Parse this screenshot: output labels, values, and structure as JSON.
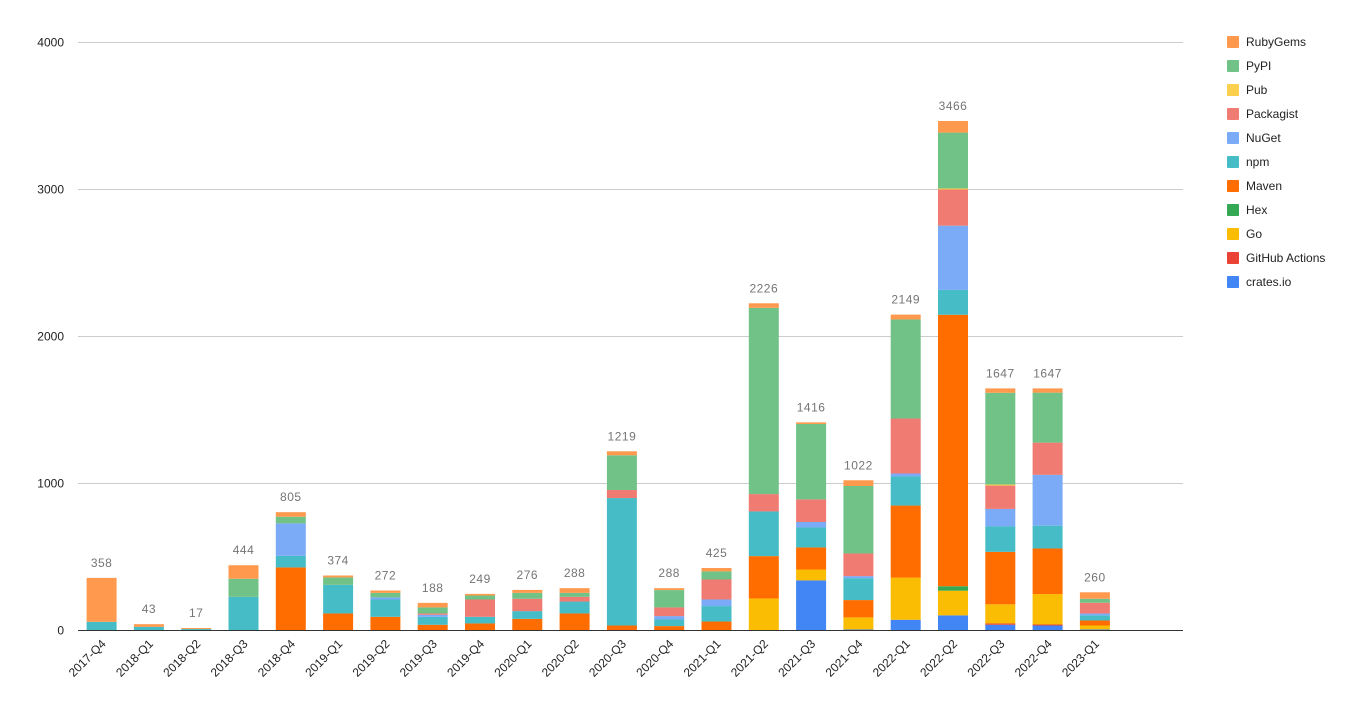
{
  "chart_data": {
    "type": "bar",
    "stacked": true,
    "title": "",
    "xlabel": "",
    "ylabel": "",
    "ylim": [
      0,
      4000
    ],
    "yticks": [
      0,
      1000,
      2000,
      3000,
      4000
    ],
    "grid": true,
    "legend_position": "right",
    "categories": [
      "2017-Q4",
      "2018-Q1",
      "2018-Q2",
      "2018-Q3",
      "2018-Q4",
      "2019-Q1",
      "2019-Q2",
      "2019-Q3",
      "2019-Q4",
      "2020-Q1",
      "2020-Q2",
      "2020-Q3",
      "2020-Q4",
      "2021-Q1",
      "2021-Q2",
      "2021-Q3",
      "2021-Q4",
      "2022-Q1",
      "2022-Q2",
      "2022-Q3",
      "2022-Q4",
      "2023-Q1"
    ],
    "totals": [
      358,
      43,
      17,
      444,
      805,
      374,
      272,
      188,
      249,
      276,
      288,
      1219,
      288,
      425,
      2226,
      1416,
      1022,
      2149,
      3466,
      1647,
      1647,
      260
    ],
    "series": [
      {
        "name": "crates.io",
        "color": "#4285f4",
        "values": [
          0,
          0,
          0,
          0,
          0,
          0,
          0,
          0,
          0,
          0,
          0,
          0,
          0,
          0,
          0,
          341,
          7,
          73,
          103,
          39,
          34,
          7
        ]
      },
      {
        "name": "GitHub Actions",
        "color": "#ea4335",
        "values": [
          0,
          0,
          0,
          0,
          0,
          0,
          0,
          0,
          0,
          0,
          0,
          0,
          0,
          0,
          0,
          0,
          0,
          0,
          0,
          9,
          7,
          0
        ]
      },
      {
        "name": "Go",
        "color": "#fbbc04",
        "values": [
          0,
          0,
          0,
          0,
          0,
          0,
          0,
          0,
          0,
          0,
          0,
          0,
          0,
          0,
          218,
          74,
          82,
          287,
          168,
          130,
          207,
          27
        ]
      },
      {
        "name": "Hex",
        "color": "#34a853",
        "values": [
          0,
          0,
          0,
          0,
          0,
          0,
          0,
          0,
          0,
          0,
          0,
          0,
          0,
          0,
          0,
          0,
          0,
          0,
          30,
          0,
          0,
          0
        ]
      },
      {
        "name": "Maven",
        "color": "#ff6d01",
        "values": [
          0,
          0,
          0,
          0,
          429,
          116,
          93,
          39,
          48,
          79,
          116,
          34,
          30,
          61,
          288,
          150,
          118,
          490,
          1847,
          357,
          310,
          34
        ]
      },
      {
        "name": "npm",
        "color": "#46bdc6",
        "values": [
          59,
          25,
          10,
          229,
          79,
          195,
          118,
          54,
          45,
          53,
          81,
          867,
          45,
          105,
          304,
          136,
          149,
          198,
          169,
          173,
          155,
          35
        ]
      },
      {
        "name": "NuGet",
        "color": "#7baaf7",
        "values": [
          0,
          0,
          0,
          0,
          221,
          0,
          14,
          14,
          0,
          0,
          0,
          0,
          23,
          45,
          0,
          37,
          14,
          20,
          437,
          119,
          346,
          13
        ]
      },
      {
        "name": "Packagist",
        "color": "#f07b72",
        "values": [
          0,
          0,
          0,
          0,
          0,
          0,
          0,
          9,
          118,
          84,
          32,
          55,
          59,
          136,
          118,
          154,
          154,
          374,
          246,
          159,
          219,
          73
        ]
      },
      {
        "name": "Pub",
        "color": "#fcd04f",
        "values": [
          0,
          0,
          0,
          0,
          0,
          0,
          0,
          0,
          0,
          0,
          0,
          0,
          0,
          0,
          0,
          0,
          0,
          0,
          7,
          7,
          0,
          0
        ]
      },
      {
        "name": "PyPI",
        "color": "#71c287",
        "values": [
          0,
          0,
          0,
          123,
          45,
          50,
          31,
          41,
          27,
          40,
          27,
          236,
          118,
          55,
          1267,
          513,
          459,
          674,
          380,
          624,
          340,
          27
        ]
      },
      {
        "name": "RubyGems",
        "color": "#ff994d",
        "values": [
          299,
          18,
          7,
          92,
          31,
          13,
          16,
          31,
          11,
          20,
          32,
          27,
          13,
          23,
          31,
          11,
          39,
          33,
          79,
          30,
          29,
          44
        ]
      }
    ]
  }
}
